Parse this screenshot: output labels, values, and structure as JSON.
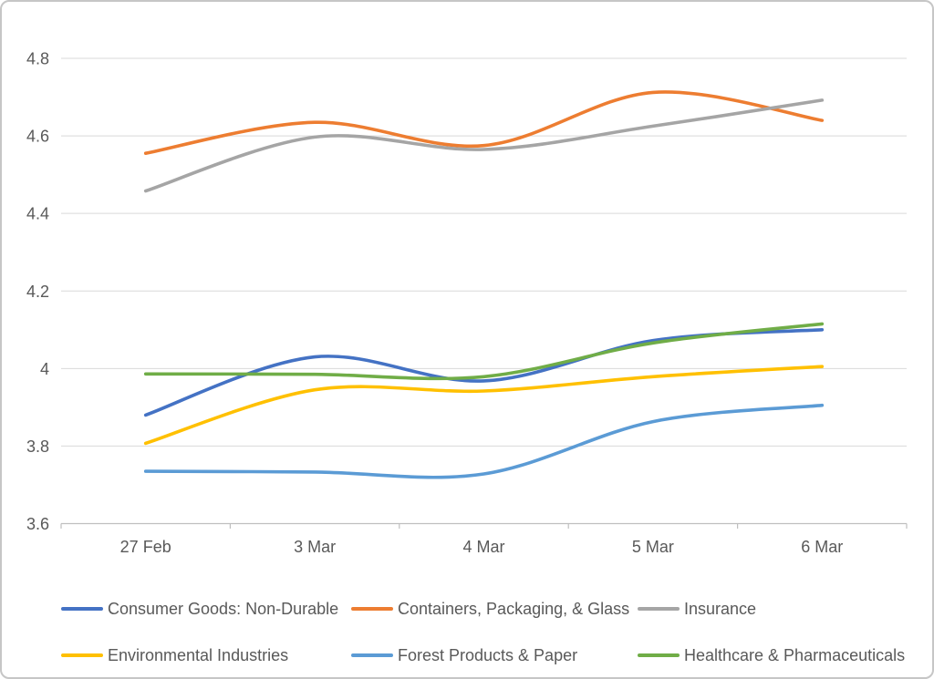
{
  "chart_data": {
    "type": "line",
    "smooth": true,
    "title": "",
    "xlabel": "",
    "ylabel": "",
    "grid": true,
    "legend_position": "bottom",
    "ylim": [
      3.6,
      4.8
    ],
    "y_ticks": [
      "3.6",
      "3.8",
      "4",
      "4.2",
      "4.4",
      "4.6",
      "4.8"
    ],
    "categories": [
      "27 Feb",
      "3 Mar",
      "4 Mar",
      "5 Mar",
      "6 Mar"
    ],
    "series": [
      {
        "name": "Consumer Goods: Non-Durable",
        "color": "#4472C4",
        "values": [
          3.88,
          4.03,
          3.968,
          4.072,
          4.1
        ]
      },
      {
        "name": "Containers, Packaging, & Glass",
        "color": "#ED7D31",
        "values": [
          4.555,
          4.635,
          4.575,
          4.712,
          4.64
        ]
      },
      {
        "name": "Insurance",
        "color": "#A5A5A5",
        "values": [
          4.458,
          4.597,
          4.565,
          4.625,
          4.692
        ]
      },
      {
        "name": "Environmental Industries",
        "color": "#FFC000",
        "values": [
          3.807,
          3.945,
          3.942,
          3.979,
          4.005
        ]
      },
      {
        "name": "Forest Products & Paper",
        "color": "#5B9BD5",
        "values": [
          3.735,
          3.733,
          3.728,
          3.863,
          3.905
        ]
      },
      {
        "name": "Healthcare & Pharmaceuticals",
        "color": "#70AD47",
        "values": [
          3.986,
          3.985,
          3.979,
          4.066,
          4.115
        ]
      }
    ]
  },
  "colors": {
    "background": "#FFFFFF",
    "border": "#C6C6C6",
    "gridline": "#D9D9D9",
    "axis_line": "#BFBFBF",
    "axis_text": "#595959",
    "legend_text": "#595959"
  }
}
